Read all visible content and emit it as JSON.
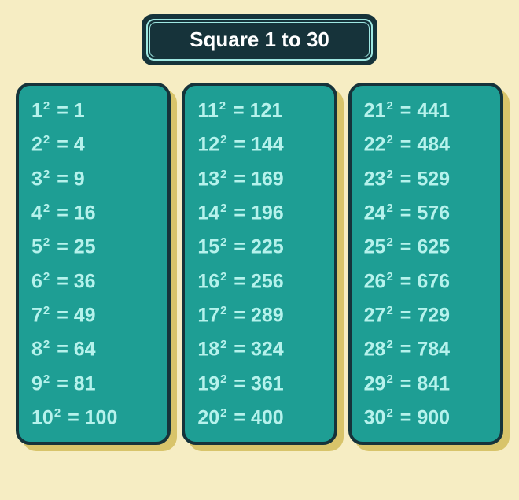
{
  "title": "Square 1 to 30",
  "colors": {
    "page_bg": "#f6edc3",
    "title_bg": "#16333a",
    "title_border": "#9fe8e2",
    "title_text": "#ffffff",
    "panel_bg": "#1e9e94",
    "panel_border": "#16333a",
    "text": "#b6f2ec",
    "shadow": "#d8c46a"
  },
  "typography": {
    "title_fontsize": 26,
    "row_fontsize": 25,
    "sup_fontsize": 15,
    "font_weight": "bold"
  },
  "layout": {
    "columns": 3,
    "rows_per_column": 10,
    "panel_border_radius": 18,
    "title_border_radius": 14
  },
  "columns": [
    [
      {
        "base": "1",
        "result": "1"
      },
      {
        "base": "2",
        "result": "4"
      },
      {
        "base": "3",
        "result": "9"
      },
      {
        "base": "4",
        "result": "16"
      },
      {
        "base": "5",
        "result": "25"
      },
      {
        "base": "6",
        "result": "36"
      },
      {
        "base": "7",
        "result": "49"
      },
      {
        "base": "8",
        "result": "64"
      },
      {
        "base": "9",
        "result": "81"
      },
      {
        "base": "10",
        "result": "100"
      }
    ],
    [
      {
        "base": "11",
        "result": "121"
      },
      {
        "base": "12",
        "result": "144"
      },
      {
        "base": "13",
        "result": "169"
      },
      {
        "base": "14",
        "result": "196"
      },
      {
        "base": "15",
        "result": "225"
      },
      {
        "base": "16",
        "result": "256"
      },
      {
        "base": "17",
        "result": "289"
      },
      {
        "base": "18",
        "result": "324"
      },
      {
        "base": "19",
        "result": "361"
      },
      {
        "base": "20",
        "result": "400"
      }
    ],
    [
      {
        "base": "21",
        "result": "441"
      },
      {
        "base": "22",
        "result": "484"
      },
      {
        "base": "23",
        "result": "529"
      },
      {
        "base": "24",
        "result": "576"
      },
      {
        "base": "25",
        "result": "625"
      },
      {
        "base": "26",
        "result": "676"
      },
      {
        "base": "27",
        "result": "729"
      },
      {
        "base": "28",
        "result": "784"
      },
      {
        "base": "29",
        "result": "841"
      },
      {
        "base": "30",
        "result": "900"
      }
    ]
  ],
  "exponent_label": "2",
  "equals_label": " = "
}
